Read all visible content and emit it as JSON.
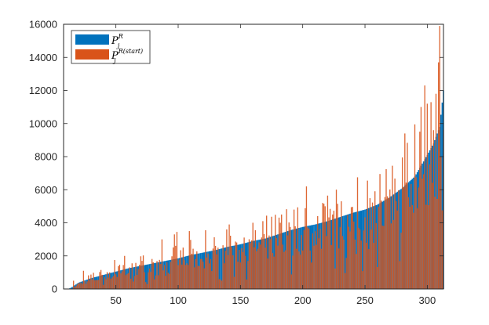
{
  "chart_data": {
    "type": "bar",
    "title": "",
    "xlabel": "",
    "ylabel": "",
    "xlim": [
      8,
      313
    ],
    "ylim": [
      0,
      16000
    ],
    "xticks": [
      50,
      100,
      150,
      200,
      250,
      300
    ],
    "yticks": [
      0,
      2000,
      4000,
      6000,
      8000,
      10000,
      12000,
      14000,
      16000
    ],
    "grid": false,
    "legend_position": "top-left",
    "x_start": 12,
    "x_end": 313,
    "series": [
      {
        "name": "P_j^R",
        "legend": {
          "base": "P",
          "sub": "j",
          "sup": "R"
        },
        "color": "#0072BD",
        "description": "sorted ascending",
        "anchors": [
          [
            12,
            0
          ],
          [
            15,
            120
          ],
          [
            20,
            380
          ],
          [
            30,
            650
          ],
          [
            40,
            850
          ],
          [
            50,
            1050
          ],
          [
            60,
            1250
          ],
          [
            70,
            1400
          ],
          [
            80,
            1550
          ],
          [
            90,
            1700
          ],
          [
            100,
            1850
          ],
          [
            110,
            2050
          ],
          [
            120,
            2200
          ],
          [
            130,
            2350
          ],
          [
            140,
            2550
          ],
          [
            150,
            2700
          ],
          [
            160,
            2900
          ],
          [
            170,
            3050
          ],
          [
            180,
            3300
          ],
          [
            190,
            3550
          ],
          [
            200,
            3750
          ],
          [
            210,
            3900
          ],
          [
            220,
            4100
          ],
          [
            230,
            4350
          ],
          [
            240,
            4600
          ],
          [
            250,
            4800
          ],
          [
            260,
            5100
          ],
          [
            270,
            5550
          ],
          [
            280,
            6100
          ],
          [
            290,
            6800
          ],
          [
            300,
            8100
          ],
          [
            305,
            8800
          ],
          [
            310,
            9800
          ],
          [
            313,
            12000
          ]
        ]
      },
      {
        "name": "P_j^R(start)",
        "legend": {
          "base": "P",
          "sub": "j",
          "sup": "R(start)"
        },
        "color": "#D95319",
        "description": "unsorted, noisy around the sorted curve",
        "peaks": [
          [
            16,
            500
          ],
          [
            24,
            1100
          ],
          [
            38,
            1150
          ],
          [
            49,
            1750
          ],
          [
            57,
            2000
          ],
          [
            63,
            1550
          ],
          [
            71,
            1700
          ],
          [
            87,
            3000
          ],
          [
            97,
            3300
          ],
          [
            99,
            3450
          ],
          [
            109,
            3500
          ],
          [
            122,
            3550
          ],
          [
            139,
            3600
          ],
          [
            141,
            3900
          ],
          [
            162,
            3550
          ],
          [
            168,
            4100
          ],
          [
            183,
            4500
          ],
          [
            193,
            4800
          ],
          [
            203,
            6200
          ],
          [
            216,
            5200
          ],
          [
            218,
            5000
          ],
          [
            231,
            5300
          ],
          [
            244,
            6750
          ],
          [
            252,
            6550
          ],
          [
            262,
            6950
          ],
          [
            272,
            7450
          ],
          [
            280,
            7950
          ],
          [
            282,
            9400
          ],
          [
            290,
            9950
          ],
          [
            295,
            11000
          ],
          [
            298,
            12300
          ],
          [
            300,
            11200
          ],
          [
            305,
            9600
          ],
          [
            307,
            11800
          ],
          [
            309,
            13700
          ],
          [
            310,
            15900
          ]
        ]
      }
    ]
  }
}
